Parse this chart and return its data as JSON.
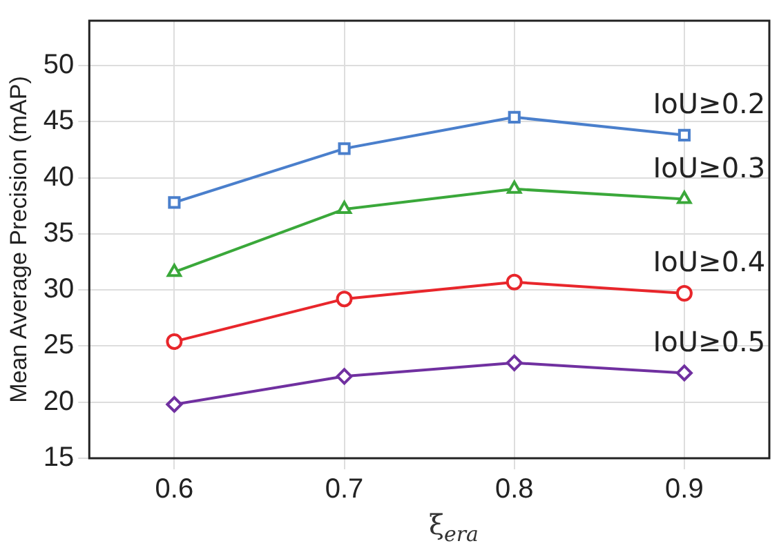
{
  "chart_data": {
    "type": "line",
    "xlabel": "ξ$_{era}$",
    "ylabel": "Mean Average Precision (mAP)",
    "categories": [
      "0.6",
      "0.7",
      "0.8",
      "0.9"
    ],
    "ylim": [
      15,
      54
    ],
    "yticks": [
      15,
      20,
      25,
      30,
      35,
      40,
      45,
      50
    ],
    "grid": true,
    "legend": false,
    "series": [
      {
        "name": "IoU≥0.2",
        "color": "#4a7fcc",
        "marker": "square",
        "values": [
          37.8,
          42.6,
          45.4,
          43.8
        ]
      },
      {
        "name": "IoU≥0.3",
        "color": "#3aa83a",
        "marker": "triangle",
        "values": [
          31.6,
          37.2,
          39.0,
          38.1
        ]
      },
      {
        "name": "IoU≥0.4",
        "color": "#e8262b",
        "marker": "circle",
        "values": [
          25.4,
          29.2,
          30.7,
          29.7
        ]
      },
      {
        "name": "IoU≥0.5",
        "color": "#7030a0",
        "marker": "diamond",
        "values": [
          19.8,
          22.3,
          23.5,
          22.6
        ]
      }
    ]
  }
}
